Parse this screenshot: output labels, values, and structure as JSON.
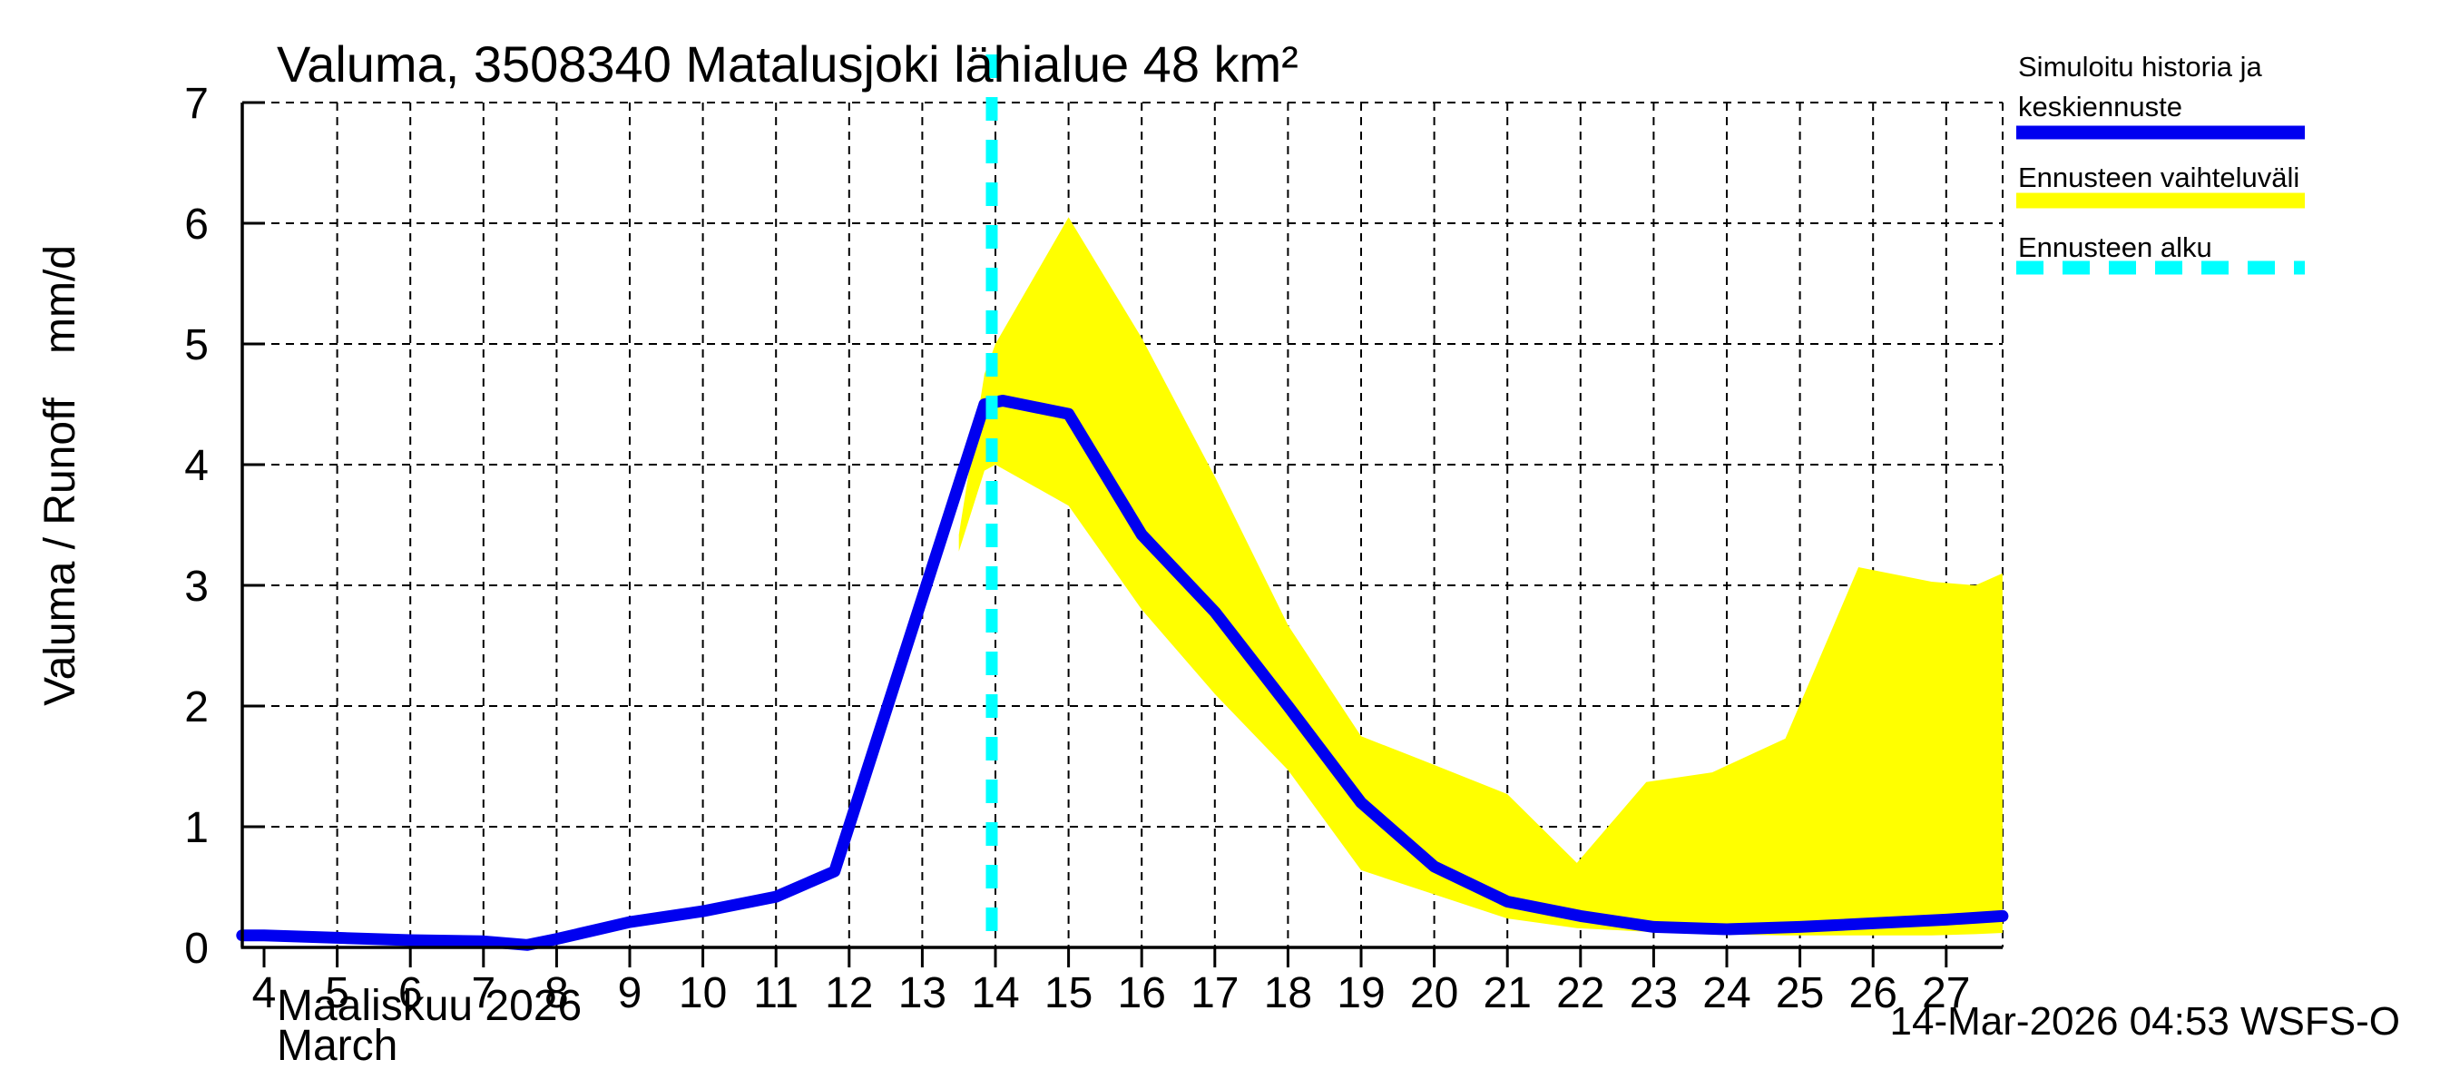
{
  "title": "Valuma, 3508340 Matalusjoki lähialue 48 km²",
  "y_axis_label_main": "Valuma / Runoff",
  "y_axis_label_unit": "mm/d",
  "x_axis_label_fi": "Maaliskuu 2026",
  "x_axis_label_en": "March",
  "timestamp": "14-Mar-2026 04:53 WSFS-O",
  "colors": {
    "history_line": "#0000F0",
    "forecast_band": "#FFFF00",
    "forecast_start": "#00FFFF",
    "grid": "#000000",
    "axis": "#000000",
    "background": "#FFFFFF"
  },
  "legend": [
    {
      "lines": [
        "Simuloitu historia ja",
        "keskiennuste"
      ],
      "swatch": "line",
      "color": "#0000F0"
    },
    {
      "lines": [
        "Ennusteen vaihteluväli"
      ],
      "swatch": "band",
      "color": "#FFFF00"
    },
    {
      "lines": [
        "Ennusteen alku"
      ],
      "swatch": "dashed-line",
      "color": "#00FFFF"
    }
  ],
  "chart_data": {
    "type": "line",
    "title": "Valuma, 3508340 Matalusjoki lähialue 48 km²",
    "xlabel": "Maaliskuu 2026 / March",
    "ylabel": "Valuma / Runoff  mm/d",
    "x_unit": "day of March 2026",
    "y_unit": "mm/d",
    "xlim": [
      3.7,
      27.77
    ],
    "ylim": [
      0,
      7
    ],
    "x_ticks": [
      4,
      5,
      6,
      7,
      8,
      9,
      10,
      11,
      12,
      13,
      14,
      15,
      16,
      17,
      18,
      19,
      20,
      21,
      22,
      23,
      24,
      25,
      26,
      27
    ],
    "y_ticks": [
      0,
      1,
      2,
      3,
      4,
      5,
      6,
      7
    ],
    "grid": true,
    "legend_position": "top-right",
    "forecast_start_day": 13.95,
    "series": [
      {
        "name": "Simuloitu historia ja keskiennuste",
        "type": "line",
        "color": "#0000F0",
        "points": [
          [
            3.7,
            0.1
          ],
          [
            4,
            0.1
          ],
          [
            5,
            0.08
          ],
          [
            6,
            0.06
          ],
          [
            7,
            0.05
          ],
          [
            7.6,
            0.02
          ],
          [
            8,
            0.07
          ],
          [
            9,
            0.21
          ],
          [
            10,
            0.3
          ],
          [
            11,
            0.42
          ],
          [
            11.8,
            0.63
          ],
          [
            13.85,
            4.5
          ],
          [
            14.1,
            4.53
          ],
          [
            15,
            4.42
          ],
          [
            16,
            3.42
          ],
          [
            17,
            2.78
          ],
          [
            18,
            2.0
          ],
          [
            19,
            1.2
          ],
          [
            20,
            0.67
          ],
          [
            21,
            0.38
          ],
          [
            22,
            0.26
          ],
          [
            23,
            0.17
          ],
          [
            24,
            0.15
          ],
          [
            25,
            0.17
          ],
          [
            26,
            0.2
          ],
          [
            27,
            0.23
          ],
          [
            27.77,
            0.26
          ]
        ]
      },
      {
        "name": "Ennusteen vaihteluväli",
        "type": "band",
        "color": "#FFFF00",
        "points_day_low_high": [
          [
            13.5,
            3.28,
            3.42
          ],
          [
            13.85,
            3.95,
            4.75
          ],
          [
            14,
            4.0,
            5.0
          ],
          [
            15,
            3.66,
            6.05
          ],
          [
            16,
            2.8,
            5.05
          ],
          [
            17,
            2.1,
            3.9
          ],
          [
            18,
            1.47,
            2.67
          ],
          [
            19,
            0.64,
            1.75
          ],
          [
            19.8,
            0.48,
            1.56
          ],
          [
            21,
            0.24,
            1.27
          ],
          [
            21.95,
            0.16,
            0.7
          ],
          [
            22.9,
            0.13,
            1.37
          ],
          [
            23.8,
            0.11,
            1.45
          ],
          [
            24.8,
            0.1,
            1.73
          ],
          [
            25.8,
            0.1,
            3.15
          ],
          [
            26.8,
            0.1,
            3.03
          ],
          [
            27.4,
            0.11,
            3.0
          ],
          [
            27.77,
            0.12,
            3.1
          ]
        ]
      },
      {
        "name": "Ennusteen alku",
        "type": "vline",
        "color": "#00FFFF",
        "x": 13.95
      }
    ]
  }
}
